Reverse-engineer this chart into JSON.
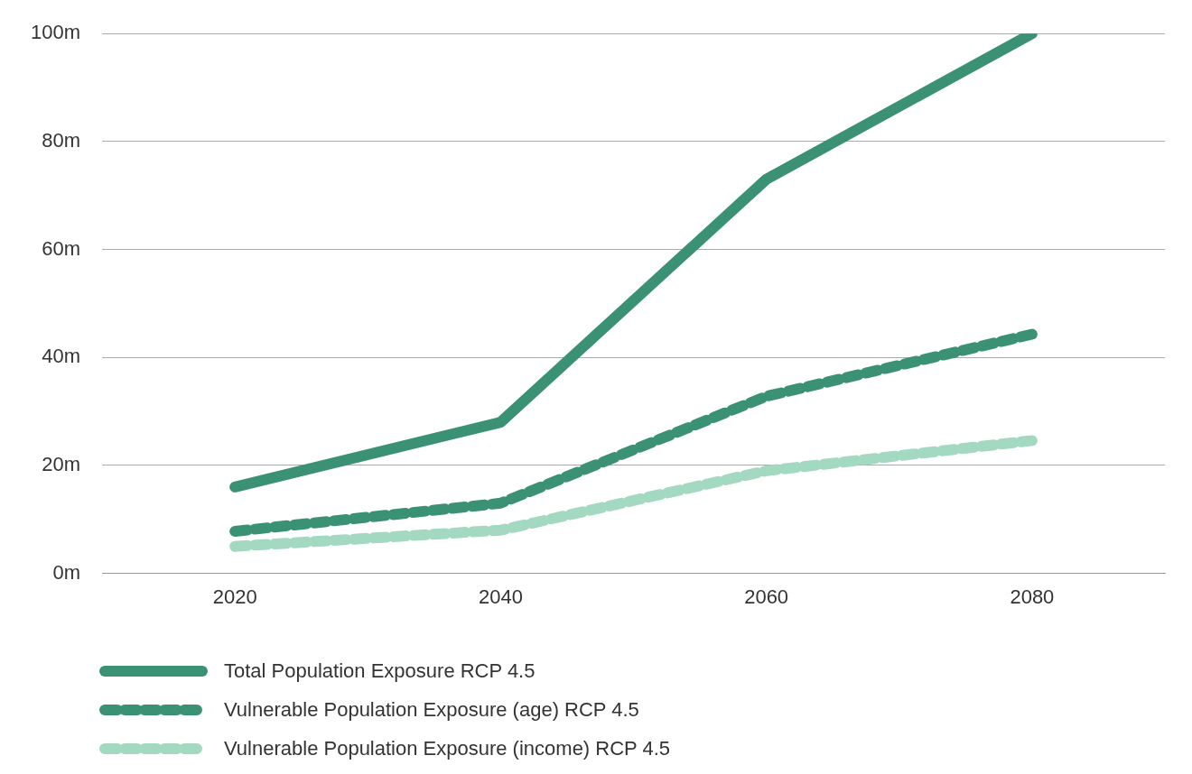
{
  "chart_data": {
    "type": "line",
    "categories": [
      "2020",
      "2040",
      "2060",
      "2080"
    ],
    "series": [
      {
        "name": "Total Population Exposure RCP 4.5",
        "color": "#3a9174",
        "line_style": "solid",
        "values": [
          16,
          28,
          73,
          100
        ]
      },
      {
        "name": "Vulnerable Population Exposure (age) RCP 4.5",
        "color": "#3a9174",
        "line_style": "dashed",
        "values": [
          7.8,
          13,
          32.8,
          44.3
        ]
      },
      {
        "name": "Vulnerable Population Exposure (income) RCP 4.5",
        "color": "#a3d9c1",
        "line_style": "dashed",
        "values": [
          5,
          8,
          19,
          24.6
        ]
      }
    ],
    "ylim": [
      0,
      100
    ],
    "yticks": [
      {
        "value": 0,
        "label": "0m"
      },
      {
        "value": 20,
        "label": "20m"
      },
      {
        "value": 40,
        "label": "40m"
      },
      {
        "value": 60,
        "label": "60m"
      },
      {
        "value": 80,
        "label": "80m"
      },
      {
        "value": 100,
        "label": "100m"
      }
    ],
    "grid": "y",
    "legend": "bottom left",
    "marker": "none"
  }
}
